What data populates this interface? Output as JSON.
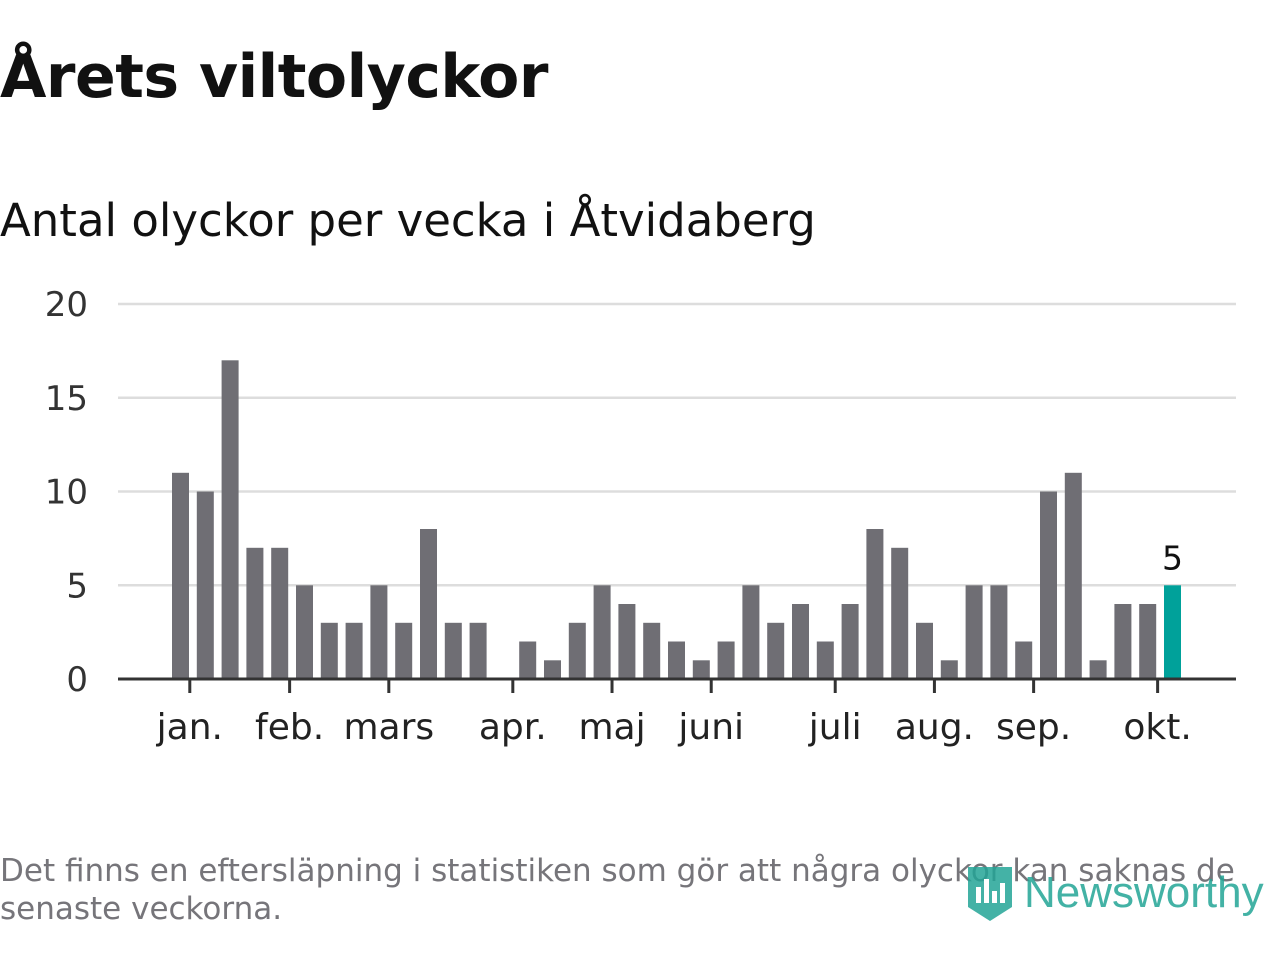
{
  "title": "Årets viltolyckor",
  "subtitle": "Antal olyckor per vecka i Åtvidaberg",
  "footnote": "Det finns en eftersläpning i statistiken som gör att några olyckor kan saknas de senaste veckorna.",
  "logo": {
    "text": "Newsworthy",
    "icon": "newsworthy-bars-icon"
  },
  "colors": {
    "bar": "#6f6e74",
    "highlight": "#00a19a",
    "grid": "#dddddd",
    "axis": "#333333",
    "text": "#333333",
    "logo": "#23a596"
  },
  "chart_data": {
    "type": "bar",
    "title": "Antal olyckor per vecka i Åtvidaberg",
    "xlabel": "",
    "ylabel": "",
    "ylim": [
      0,
      20
    ],
    "yticks": [
      0,
      5,
      10,
      15,
      20
    ],
    "grid": true,
    "week_start": 1,
    "values": [
      11,
      10,
      17,
      7,
      7,
      5,
      3,
      3,
      5,
      3,
      8,
      3,
      3,
      0,
      2,
      1,
      3,
      5,
      4,
      3,
      2,
      1,
      2,
      5,
      3,
      4,
      2,
      4,
      8,
      7,
      3,
      1,
      5,
      5,
      2,
      10,
      11,
      1,
      4,
      4,
      5
    ],
    "highlight_index": 40,
    "highlight_label": "5",
    "month_ticks": [
      {
        "label": "jan.",
        "week_index": 0.375
      },
      {
        "label": "feb.",
        "week_index": 4.4
      },
      {
        "label": "mars",
        "week_index": 8.4
      },
      {
        "label": "apr.",
        "week_index": 13.4
      },
      {
        "label": "maj",
        "week_index": 17.4
      },
      {
        "label": "juni",
        "week_index": 21.4
      },
      {
        "label": "juli",
        "week_index": 26.4
      },
      {
        "label": "aug.",
        "week_index": 30.4
      },
      {
        "label": "sep.",
        "week_index": 34.4
      },
      {
        "label": "okt.",
        "week_index": 39.4
      }
    ]
  }
}
